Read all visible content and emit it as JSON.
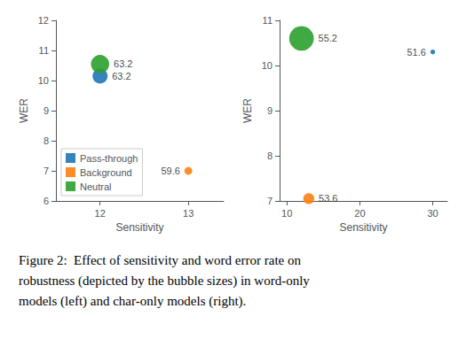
{
  "chart_data": [
    {
      "type": "scatter",
      "xlabel": "Sensitivity",
      "ylabel": "WER",
      "xlim": [
        11.5,
        13.4
      ],
      "ylim": [
        6,
        12
      ],
      "xticks": [
        12,
        13
      ],
      "yticks": [
        6,
        7,
        8,
        9,
        10,
        11,
        12
      ],
      "grid": false,
      "legend": "lower left",
      "series": [
        {
          "name": "Pass-through",
          "color": "#1f77b4",
          "x": [
            12.0
          ],
          "values": [
            10.15
          ],
          "sizes": [
            150
          ],
          "annotations": [
            "63.2"
          ]
        },
        {
          "name": "Background",
          "color": "#ff7f0e",
          "x": [
            13.0
          ],
          "values": [
            7.0
          ],
          "sizes": [
            40
          ],
          "annotations": [
            "59.6"
          ]
        },
        {
          "name": "Neutral",
          "color": "#2ca02c",
          "x": [
            12.0
          ],
          "values": [
            10.55
          ],
          "sizes": [
            220
          ],
          "annotations": [
            "63.2"
          ]
        }
      ]
    },
    {
      "type": "scatter",
      "xlabel": "Sensitivity",
      "ylabel": "WER",
      "xlim": [
        9,
        32
      ],
      "ylim": [
        7,
        11
      ],
      "xticks": [
        10,
        20,
        30
      ],
      "yticks": [
        7,
        8,
        9,
        10,
        11
      ],
      "grid": false,
      "series": [
        {
          "name": "Pass-through",
          "color": "#1f77b4",
          "x": [
            30.0
          ],
          "values": [
            10.3
          ],
          "sizes": [
            15
          ],
          "annotations": [
            "51.6"
          ]
        },
        {
          "name": "Background",
          "color": "#ff7f0e",
          "x": [
            13.0
          ],
          "values": [
            7.05
          ],
          "sizes": [
            80
          ],
          "annotations": [
            "53.6"
          ]
        },
        {
          "name": "Neutral",
          "color": "#2ca02c",
          "x": [
            12.0
          ],
          "values": [
            10.6
          ],
          "sizes": [
            400
          ],
          "annotations": [
            "55.2"
          ]
        }
      ]
    }
  ],
  "caption": "Figure 2:  Effect of sensitivity and word error rate on\nrobustness (depicted by the bubble sizes) in word-only\nmodels (left) and char-only models (right)."
}
